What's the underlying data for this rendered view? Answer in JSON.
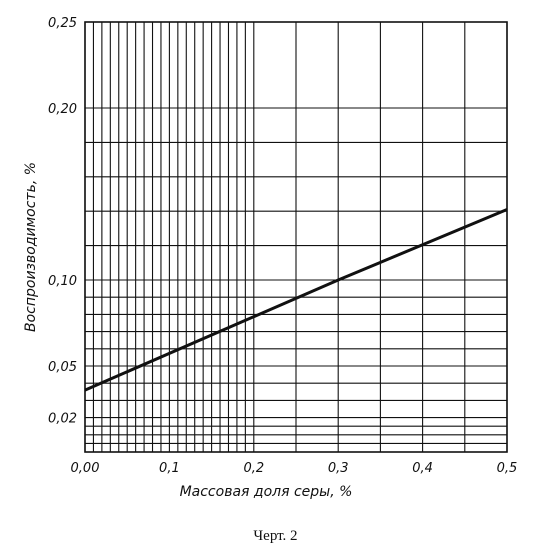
{
  "chart_data": {
    "type": "line",
    "title": "",
    "xlabel": "Массовая доля серы, %",
    "ylabel": "Воспроизводимость, %",
    "x_ticks": [
      {
        "value": 0.0,
        "label": "0,00"
      },
      {
        "value": 0.1,
        "label": "0,1"
      },
      {
        "value": 0.2,
        "label": "0,2"
      },
      {
        "value": 0.3,
        "label": "0,3"
      },
      {
        "value": 0.4,
        "label": "0,4"
      },
      {
        "value": 0.5,
        "label": "0,5"
      }
    ],
    "y_ticks": [
      {
        "value": 0.02,
        "label": "0,02"
      },
      {
        "value": 0.05,
        "label": "0,05"
      },
      {
        "value": 0.1,
        "label": "0,10"
      },
      {
        "value": 0.2,
        "label": "0,20"
      },
      {
        "value": 0.25,
        "label": "0,25"
      }
    ],
    "x_grid": [
      0,
      0.01,
      0.02,
      0.03,
      0.04,
      0.05,
      0.06,
      0.07,
      0.08,
      0.09,
      0.1,
      0.11,
      0.12,
      0.13,
      0.14,
      0.15,
      0.16,
      0.17,
      0.18,
      0.19,
      0.2,
      0.25,
      0.3,
      0.35,
      0.4,
      0.45,
      0.5
    ],
    "y_grid": [
      0.005,
      0.01,
      0.015,
      0.02,
      0.03,
      0.04,
      0.05,
      0.06,
      0.07,
      0.08,
      0.09,
      0.1,
      0.12,
      0.14,
      0.16,
      0.18,
      0.2,
      0.25
    ],
    "xlim": [
      0,
      0.5
    ],
    "ylim": [
      0,
      0.25
    ],
    "grid": true,
    "series": [
      {
        "x": [
          0.0,
          0.3,
          0.5
        ],
        "y": [
          0.036,
          0.1,
          0.141
        ]
      }
    ]
  },
  "caption": "Черт. 2",
  "colors": {
    "line": "#111111",
    "grid": "#111111"
  }
}
